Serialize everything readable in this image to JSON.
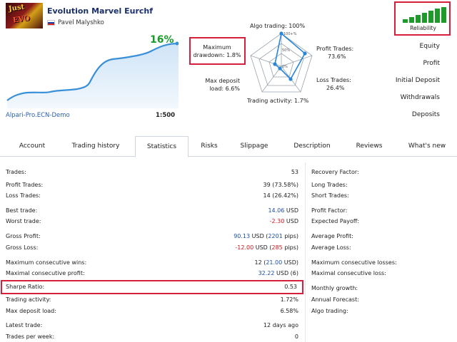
{
  "header": {
    "title": "Evolution Marvel Eurchf",
    "author": "Pavel Malyshko"
  },
  "growth": {
    "percent": "16%",
    "broker": "Alpari-Pro.ECN-Demo",
    "leverage": "1:500"
  },
  "radar": {
    "algo_trading": "Algo trading: 100%",
    "profit_trades": "Profit Trades:",
    "profit_trades_val": "73.6%",
    "loss_trades": "Loss Trades:",
    "loss_trades_val": "26.4%",
    "trading_activity": "Trading activity: 1.7%",
    "max_deposit_load": "Max deposit",
    "max_deposit_load_val": "load: 6.6%",
    "max_drawdown": "Maximum",
    "max_drawdown_val": "drawdown: 1.8%",
    "scale_100": "100+%",
    "scale_50": "50%",
    "scale_0": "0%"
  },
  "reliability": {
    "label": "Reliability"
  },
  "menu": [
    "Equity",
    "Profit",
    "Initial Deposit",
    "Withdrawals",
    "Deposits"
  ],
  "tabs": [
    "Account",
    "Trading history",
    "Statistics",
    "Risks",
    "Slippage",
    "Description",
    "Reviews",
    "What's new"
  ],
  "active_tab": "Statistics",
  "stats_left": [
    {
      "k": "Trades:",
      "v": "53"
    },
    {
      "k": "Profit Trades:",
      "v": "39 (73.58%)"
    },
    {
      "k": "Loss Trades:",
      "v": "14 (26.42%)"
    },
    {
      "k": "Best trade:",
      "v": "14.06",
      "u": " USD",
      "c": "blue"
    },
    {
      "k": "Worst trade:",
      "v": "-2.30",
      "u": " USD",
      "c": "red"
    },
    {
      "k": "Gross Profit:",
      "v": "90.13",
      "u": " USD (",
      "v2": "2201",
      "u2": " pips)",
      "c": "blue"
    },
    {
      "k": "Gross Loss:",
      "v": "-12.00",
      "u": " USD (",
      "v2": "285",
      "u2": " pips)",
      "c": "red"
    },
    {
      "k": "Maximum consecutive wins:",
      "v": "12 (",
      "v2": "21.00",
      "u2": " USD)",
      "c": "blue"
    },
    {
      "k": "Maximal consecutive profit:",
      "v": "32.22",
      "u": " USD (6)",
      "c": "blue"
    },
    {
      "k": "Sharpe Ratio:",
      "v": "0.53"
    },
    {
      "k": "Trading activity:",
      "v": "1.72%"
    },
    {
      "k": "Max deposit load:",
      "v": "6.58%"
    },
    {
      "k": "Latest trade:",
      "v": "12 days ago"
    },
    {
      "k": "Trades per week:",
      "v": "0"
    }
  ],
  "stats_right": [
    "Recovery Factor:",
    "Long Trades:",
    "Short Trades:",
    "Profit Factor:",
    "Expected Payoff:",
    "Average Profit:",
    "Average Loss:",
    "Maximum consecutive losses:",
    "Maximal consecutive loss:",
    "Monthly growth:",
    "Annual Forecast:",
    "Algo trading:"
  ],
  "colors": {
    "accent_green": "#1a9c2b",
    "highlight_red": "#d61f3a",
    "link_blue": "#2a5db0",
    "chart_line": "#3a8fd9"
  }
}
